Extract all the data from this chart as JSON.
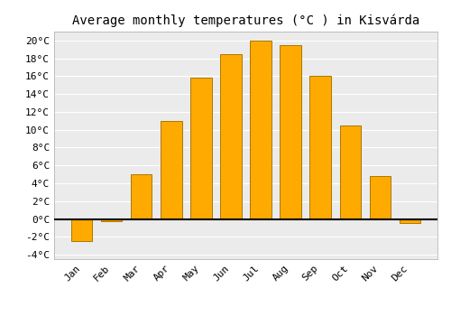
{
  "title": "Average monthly temperatures (°C ) in Kisvárda",
  "months": [
    "Jan",
    "Feb",
    "Mar",
    "Apr",
    "May",
    "Jun",
    "Jul",
    "Aug",
    "Sep",
    "Oct",
    "Nov",
    "Dec"
  ],
  "values": [
    -2.5,
    -0.3,
    5.0,
    11.0,
    15.8,
    18.5,
    20.0,
    19.5,
    16.0,
    10.5,
    4.8,
    -0.5
  ],
  "bar_color": "#FFAA00",
  "bar_edge_color": "#AA7700",
  "background_color": "#FFFFFF",
  "plot_bg_color": "#EBEBEB",
  "grid_color": "#FFFFFF",
  "zero_line_color": "#000000",
  "ylim": [
    -4.5,
    21
  ],
  "yticks": [
    -4,
    -2,
    0,
    2,
    4,
    6,
    8,
    10,
    12,
    14,
    16,
    18,
    20
  ],
  "title_fontsize": 10,
  "tick_fontsize": 8,
  "font_family": "monospace"
}
